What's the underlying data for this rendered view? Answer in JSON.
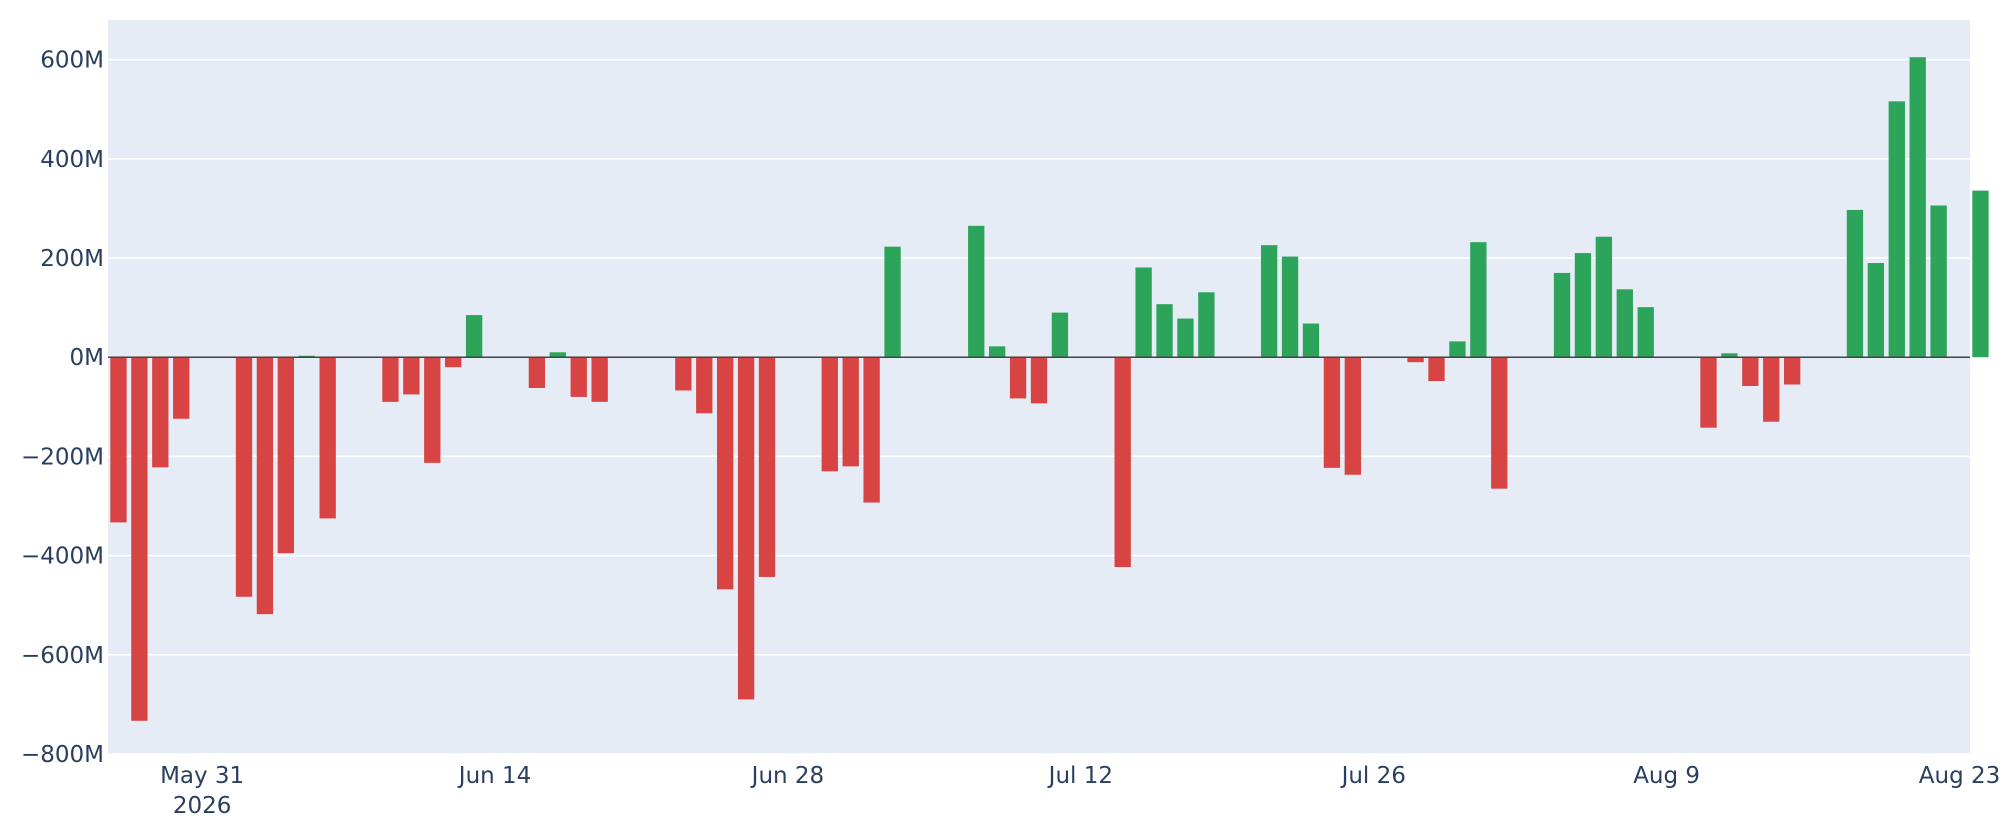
{
  "colors": {
    "positive": "#2ca55a",
    "negative": "#d84343",
    "plot_background": "#e5ecf6",
    "grid": "#ffffff",
    "zero_line": "#444444",
    "text": "#2a3f5f"
  },
  "chart_data": {
    "type": "bar",
    "title": "",
    "xlabel": "",
    "ylabel": "",
    "grid": true,
    "legend": "none",
    "x_range": [
      "2026-05-26T12:00",
      "2026-08-23T12:00"
    ],
    "ylim": [
      -800000000,
      680000000
    ],
    "y_ticks": [
      {
        "value": -800000000,
        "label": "−800M"
      },
      {
        "value": -600000000,
        "label": "−600M"
      },
      {
        "value": -400000000,
        "label": "−400M"
      },
      {
        "value": -200000000,
        "label": "−200M"
      },
      {
        "value": 0,
        "label": "0M"
      },
      {
        "value": 200000000,
        "label": "200M"
      },
      {
        "value": 400000000,
        "label": "400M"
      },
      {
        "value": 600000000,
        "label": "600M"
      }
    ],
    "x_ticks": [
      {
        "date": "2026-05-31",
        "label": "May 31",
        "sublabel": "2026"
      },
      {
        "date": "2026-06-14",
        "label": "Jun 14",
        "sublabel": ""
      },
      {
        "date": "2026-06-28",
        "label": "Jun 28",
        "sublabel": ""
      },
      {
        "date": "2026-07-12",
        "label": "Jul 12",
        "sublabel": ""
      },
      {
        "date": "2026-07-26",
        "label": "Jul 26",
        "sublabel": ""
      },
      {
        "date": "2026-08-09",
        "label": "Aug 9",
        "sublabel": ""
      },
      {
        "date": "2026-08-23",
        "label": "Aug 23",
        "sublabel": ""
      }
    ],
    "x": [
      "2026-05-27",
      "2026-05-28",
      "2026-05-29",
      "2026-05-30",
      "2026-06-02",
      "2026-06-03",
      "2026-06-04",
      "2026-06-05",
      "2026-06-06",
      "2026-06-09",
      "2026-06-10",
      "2026-06-11",
      "2026-06-12",
      "2026-06-13",
      "2026-06-16",
      "2026-06-17",
      "2026-06-18",
      "2026-06-19",
      "2026-06-23",
      "2026-06-24",
      "2026-06-25",
      "2026-06-26",
      "2026-06-27",
      "2026-06-30",
      "2026-07-01",
      "2026-07-02",
      "2026-07-03",
      "2026-07-07",
      "2026-07-08",
      "2026-07-09",
      "2026-07-10",
      "2026-07-11",
      "2026-07-14",
      "2026-07-15",
      "2026-07-16",
      "2026-07-17",
      "2026-07-18",
      "2026-07-21",
      "2026-07-22",
      "2026-07-23",
      "2026-07-24",
      "2026-07-25",
      "2026-07-28",
      "2026-07-29",
      "2026-07-30",
      "2026-07-31",
      "2026-08-01",
      "2026-08-04",
      "2026-08-05",
      "2026-08-06",
      "2026-08-07",
      "2026-08-08",
      "2026-08-11",
      "2026-08-12",
      "2026-08-13",
      "2026-08-14",
      "2026-08-15",
      "2026-08-18",
      "2026-08-19",
      "2026-08-20",
      "2026-08-21",
      "2026-08-22",
      "2026-08-24"
    ],
    "values": [
      -333000000,
      -733000000,
      -222000000,
      -124000000,
      -483000000,
      -518000000,
      -395000000,
      3000000,
      -325000000,
      -90000000,
      -75000000,
      -213000000,
      -20000000,
      85000000,
      -62000000,
      10000000,
      -80000000,
      -90000000,
      -67000000,
      -113000000,
      -468000000,
      -690000000,
      -443000000,
      -230000000,
      -220000000,
      -293000000,
      223000000,
      265000000,
      22000000,
      -83000000,
      -93000000,
      90000000,
      -423000000,
      181000000,
      107000000,
      78000000,
      131000000,
      226000000,
      203000000,
      68000000,
      -223000000,
      -237000000,
      -10000000,
      -48000000,
      32000000,
      232000000,
      -265000000,
      170000000,
      210000000,
      243000000,
      137000000,
      101000000,
      -142000000,
      8000000,
      -58000000,
      -130000000,
      -55000000,
      297000000,
      190000000,
      516000000,
      605000000,
      306000000,
      336000000
    ]
  }
}
